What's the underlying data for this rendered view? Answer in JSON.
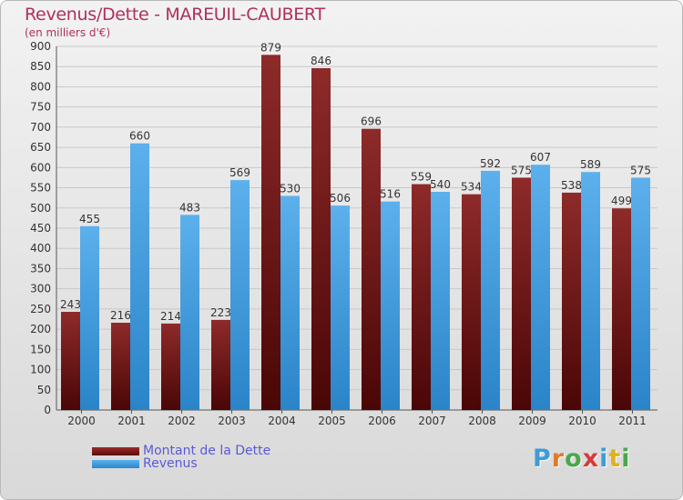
{
  "chart_data": {
    "type": "bar",
    "title": "Revenus/Dette - MAREUIL-CAUBERT",
    "subtitle": "(en milliers d'€)",
    "categories": [
      "2000",
      "2001",
      "2002",
      "2003",
      "2004",
      "2005",
      "2006",
      "2007",
      "2008",
      "2009",
      "2010",
      "2011"
    ],
    "series": [
      {
        "name": "Montant de la Dette",
        "color": "#7a1a1a",
        "values": [
          243,
          216,
          214,
          223,
          879,
          846,
          696,
          559,
          534,
          575,
          538,
          499
        ]
      },
      {
        "name": "Revenus",
        "color": "#3b9de0",
        "values": [
          455,
          660,
          483,
          569,
          530,
          506,
          516,
          540,
          592,
          607,
          589,
          575
        ]
      }
    ],
    "ylim": [
      0,
      900
    ],
    "yticks": [
      0,
      50,
      100,
      150,
      200,
      250,
      300,
      350,
      400,
      450,
      500,
      550,
      600,
      650,
      700,
      750,
      800,
      850,
      900
    ],
    "grid": true,
    "legend_position": "bottom-left"
  },
  "logo": {
    "text": "Proxiti",
    "colors": [
      "#3f9bd6",
      "#e07a2a",
      "#4aa84a",
      "#d83a3a",
      "#3f9bd6",
      "#e0b020",
      "#4aa84a"
    ]
  }
}
